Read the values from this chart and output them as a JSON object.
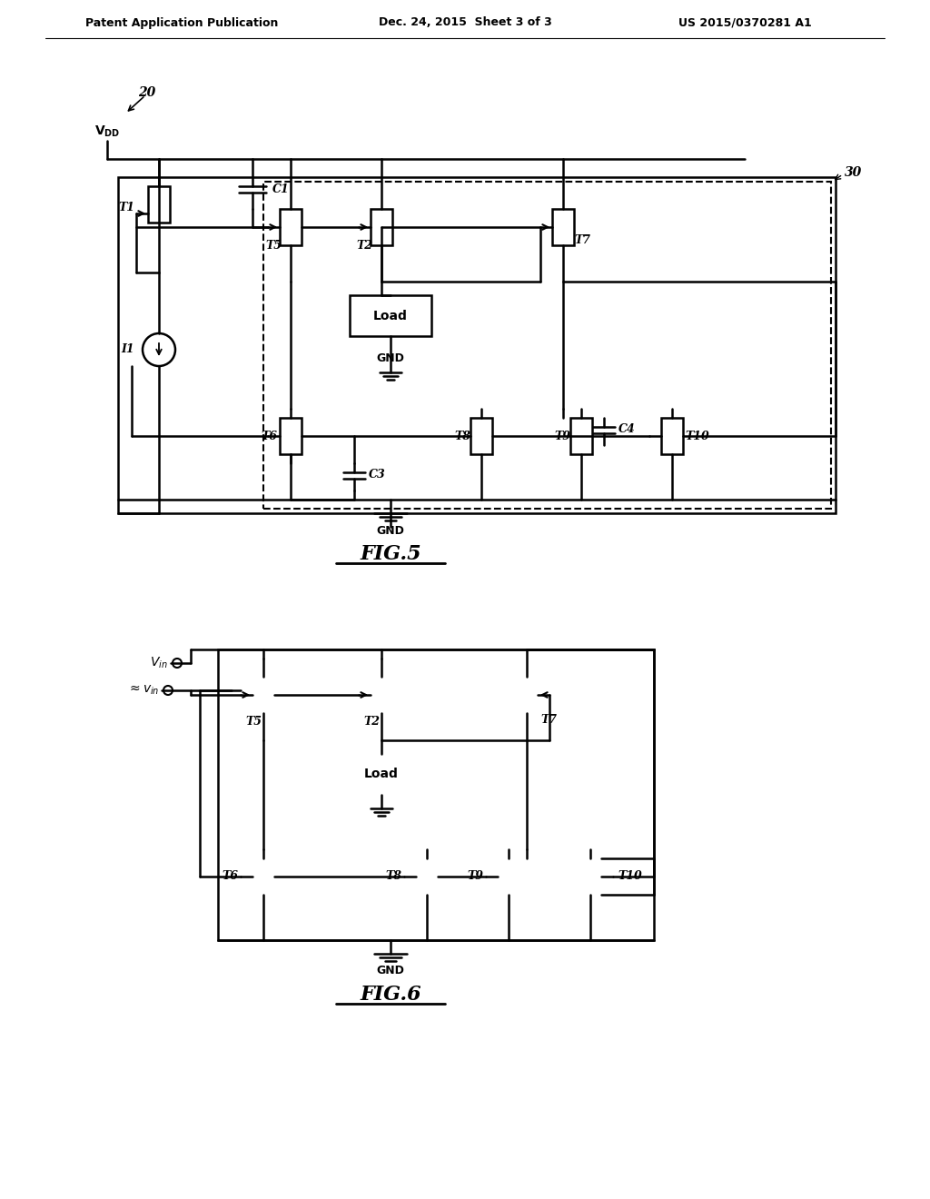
{
  "background_color": "#ffffff",
  "header_left": "Patent Application Publication",
  "header_center": "Dec. 24, 2015  Sheet 3 of 3",
  "header_right": "US 2015/0370281 A1",
  "fig5_label": "FIG.5",
  "fig6_label": "FIG.6",
  "line_color": "#000000",
  "line_width": 1.8,
  "text_color": "#000000"
}
